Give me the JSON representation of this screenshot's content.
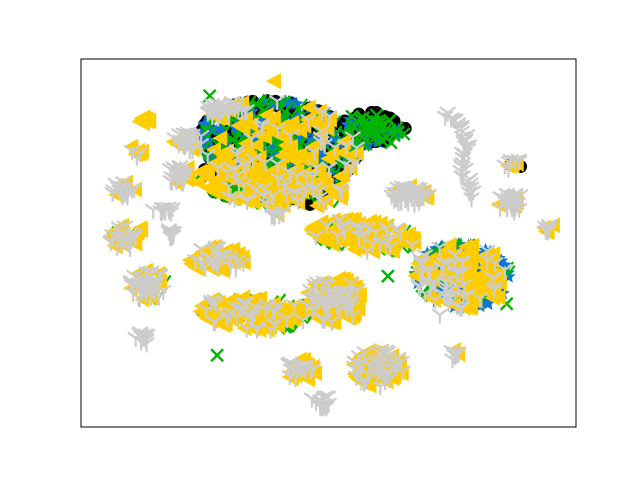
{
  "chart_data": {
    "type": "scatter",
    "title": "",
    "xlabel": "",
    "ylabel": "",
    "xlim": [
      0,
      100
    ],
    "ylim": [
      0,
      100
    ],
    "axis_ticks": "none",
    "legend": "none",
    "grid": false,
    "marker_colors": {
      "black_circle": "#000000",
      "blue_star": "#0a75d6",
      "green_tick": "#00b400",
      "green_x": "#00b400",
      "yellow_triangle": "#ffcc00",
      "gray_tri_down": "#cccccc"
    },
    "clusters": [
      {
        "id": "c01",
        "cx": 40.0,
        "cy": 76.8,
        "rx": 16.0,
        "ry": 11.5,
        "rot": -15,
        "mix": {
          "black_circle": 0.35,
          "blue_star": 0.25,
          "green_tick": 0.25,
          "yellow_triangle": 0.1,
          "gray_tri_down": 0.05
        }
      },
      {
        "id": "c02",
        "cx": 59.0,
        "cy": 81.0,
        "rx": 6.5,
        "ry": 4.5,
        "rot": 0,
        "mix": {
          "black_circle": 0.55,
          "blue_star": 0.15,
          "green_x": 0.2,
          "green_tick": 0.1
        }
      },
      {
        "id": "c03",
        "cx": 38.0,
        "cy": 65.5,
        "rx": 15.0,
        "ry": 5.0,
        "rot": -10,
        "mix": {
          "green_tick": 0.35,
          "yellow_triangle": 0.45,
          "gray_tri_down": 0.1,
          "black_circle": 0.1
        }
      },
      {
        "id": "c04",
        "cx": 77.0,
        "cy": 41.0,
        "rx": 9.5,
        "ry": 8.5,
        "rot": -20,
        "mix": {
          "blue_star": 0.35,
          "green_tick": 0.2,
          "yellow_triangle": 0.3,
          "gray_tri_down": 0.15
        }
      },
      {
        "id": "c05",
        "cx": 57.0,
        "cy": 52.0,
        "rx": 10.5,
        "ry": 4.0,
        "rot": -10,
        "mix": {
          "green_tick": 0.3,
          "yellow_triangle": 0.6,
          "gray_tri_down": 0.1
        }
      },
      {
        "id": "c06",
        "cx": 35.0,
        "cy": 31.0,
        "rx": 11.0,
        "ry": 4.5,
        "rot": -5,
        "mix": {
          "green_tick": 0.35,
          "yellow_triangle": 0.5,
          "gray_tri_down": 0.15
        }
      },
      {
        "id": "c07",
        "cx": 27.5,
        "cy": 45.5,
        "rx": 5.5,
        "ry": 3.5,
        "rot": 0,
        "mix": {
          "yellow_triangle": 0.7,
          "gray_tri_down": 0.3
        }
      },
      {
        "id": "c08",
        "cx": 51.0,
        "cy": 34.5,
        "rx": 5.5,
        "ry": 6.0,
        "rot": 0,
        "mix": {
          "yellow_triangle": 0.6,
          "gray_tri_down": 0.4
        }
      },
      {
        "id": "c09",
        "cx": 60.0,
        "cy": 16.0,
        "rx": 5.0,
        "ry": 5.0,
        "rot": 0,
        "mix": {
          "yellow_triangle": 0.65,
          "gray_tri_down": 0.35
        }
      },
      {
        "id": "c10",
        "cx": 44.5,
        "cy": 15.5,
        "rx": 3.2,
        "ry": 2.8,
        "rot": 0,
        "mix": {
          "yellow_triangle": 0.45,
          "gray_tri_down": 0.55
        }
      },
      {
        "id": "c11",
        "cx": 13.5,
        "cy": 38.5,
        "rx": 3.5,
        "ry": 4.0,
        "rot": 0,
        "mix": {
          "yellow_triangle": 0.3,
          "gray_tri_down": 0.55,
          "green_tick": 0.15
        }
      },
      {
        "id": "c12",
        "cx": 9.0,
        "cy": 52.0,
        "rx": 3.5,
        "ry": 3.5,
        "rot": 0,
        "mix": {
          "yellow_triangle": 0.45,
          "gray_tri_down": 0.4,
          "green_tick": 0.15
        }
      },
      {
        "id": "c13",
        "cx": 29.0,
        "cy": 86.0,
        "rx": 3.5,
        "ry": 2.5,
        "rot": 0,
        "mix": {
          "gray_tri_down": 0.75,
          "yellow_triangle": 0.2,
          "green_tick": 0.05
        }
      },
      {
        "id": "c14",
        "cx": 21.5,
        "cy": 77.5,
        "rx": 2.8,
        "ry": 2.5,
        "rot": 0,
        "mix": {
          "gray_tri_down": 0.8,
          "yellow_triangle": 0.2
        }
      },
      {
        "id": "c15",
        "cx": 20.0,
        "cy": 68.5,
        "rx": 2.6,
        "ry": 2.4,
        "rot": 0,
        "mix": {
          "gray_tri_down": 0.7,
          "yellow_triangle": 0.3
        }
      },
      {
        "id": "c16",
        "cx": 8.5,
        "cy": 64.5,
        "rx": 2.4,
        "ry": 2.0,
        "rot": 0,
        "mix": {
          "gray_tri_down": 0.8,
          "yellow_triangle": 0.2
        }
      },
      {
        "id": "c17",
        "cx": 11.2,
        "cy": 75.0,
        "rx": 1.5,
        "ry": 1.6,
        "rot": 0,
        "mix": {
          "gray_tri_down": 0.4,
          "yellow_triangle": 0.6
        }
      },
      {
        "id": "c18",
        "cx": 17.0,
        "cy": 59.0,
        "rx": 2.6,
        "ry": 1.0,
        "rot": 0,
        "mix": {
          "gray_tri_down": 1.0
        }
      },
      {
        "id": "c19",
        "cx": 18.5,
        "cy": 52.5,
        "rx": 1.2,
        "ry": 1.5,
        "rot": 0,
        "mix": {
          "gray_tri_down": 1.0
        }
      },
      {
        "id": "c20",
        "cx": 13.0,
        "cy": 24.5,
        "rx": 2.0,
        "ry": 1.8,
        "rot": 0,
        "mix": {
          "gray_tri_down": 1.0
        }
      },
      {
        "id": "c21",
        "cx": 48.5,
        "cy": 7.0,
        "rx": 2.0,
        "ry": 2.0,
        "rot": 0,
        "mix": {
          "gray_tri_down": 1.0
        }
      },
      {
        "id": "c22",
        "cx": 76.0,
        "cy": 19.5,
        "rx": 1.6,
        "ry": 1.5,
        "rot": 0,
        "mix": {
          "gray_tri_down": 0.8,
          "yellow_triangle": 0.2
        }
      },
      {
        "id": "c23",
        "cx": 69.0,
        "cy": 63.5,
        "rx": 1.5,
        "ry": 1.5,
        "rot": 0,
        "mix": {
          "gray_tri_down": 0.6,
          "yellow_triangle": 0.4
        }
      },
      {
        "id": "c24",
        "cx": 65.5,
        "cy": 64.5,
        "rx": 1.2,
        "ry": 1.5,
        "rot": 0,
        "mix": {
          "gray_tri_down": 0.5,
          "yellow_triangle": 0.5
        }
      },
      {
        "id": "c25",
        "cx": 87.0,
        "cy": 61.0,
        "rx": 2.8,
        "ry": 2.5,
        "rot": 0,
        "mix": {
          "gray_tri_down": 0.8,
          "yellow_triangle": 0.2
        }
      },
      {
        "id": "c26",
        "cx": 87.0,
        "cy": 71.5,
        "rx": 2.0,
        "ry": 1.7,
        "rot": 0,
        "mix": {
          "gray_tri_down": 0.5,
          "yellow_triangle": 0.3,
          "black_circle": 0.2
        }
      },
      {
        "id": "c27",
        "cx": 94.5,
        "cy": 54.5,
        "rx": 1.4,
        "ry": 1.5,
        "rot": 0,
        "mix": {
          "gray_tri_down": 0.6,
          "yellow_triangle": 0.4
        }
      },
      {
        "id": "c28",
        "cx": 39.5,
        "cy": 58.0,
        "rx": 1.2,
        "ry": 1.0,
        "rot": 0,
        "mix": {
          "gray_tri_down": 0.5,
          "yellow_triangle": 0.5
        }
      },
      {
        "id": "c29",
        "cx": 66.0,
        "cy": 63.0,
        "rx": 3.5,
        "ry": 2.5,
        "rot": 0,
        "mix": {
          "gray_tri_down": 0.6,
          "yellow_triangle": 0.4
        }
      },
      {
        "id": "c30",
        "cx": 13.0,
        "cy": 83.0,
        "rx": 1.2,
        "ry": 1.2,
        "rot": 0,
        "mix": {
          "yellow_triangle": 1.0
        }
      }
    ],
    "gray_arc": [
      [
        73.5,
        85.0
      ],
      [
        76.5,
        82.0
      ],
      [
        78.0,
        78.0
      ],
      [
        77.5,
        75.0
      ],
      [
        77.0,
        71.0
      ],
      [
        78.0,
        67.0
      ],
      [
        79.0,
        62.0
      ]
    ],
    "outliers": [
      {
        "marker": "green_x",
        "x": 27.5,
        "y": 19.5
      },
      {
        "marker": "green_x",
        "x": 86.0,
        "y": 33.5
      },
      {
        "marker": "green_x",
        "x": 62.0,
        "y": 41.0
      },
      {
        "marker": "gray_tri_down",
        "x": 72.5,
        "y": 30.5
      },
      {
        "marker": "gray_tri_down",
        "x": 64.5,
        "y": 53.0
      },
      {
        "marker": "yellow_triangle",
        "x": 39.0,
        "y": 94.0
      },
      {
        "marker": "green_x",
        "x": 26.0,
        "y": 90.0
      },
      {
        "marker": "gray_tri_down",
        "x": 71.5,
        "y": 34.5
      }
    ]
  }
}
